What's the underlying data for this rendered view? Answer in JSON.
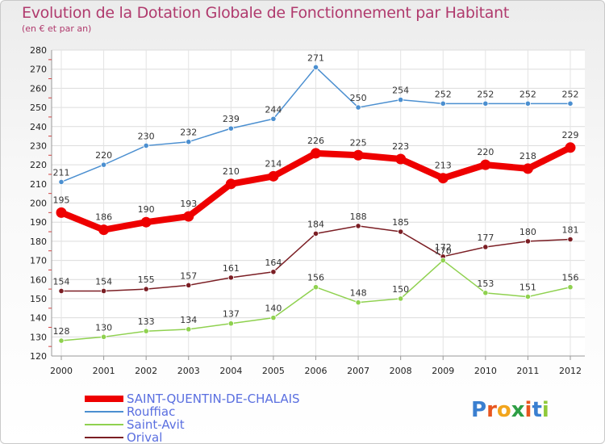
{
  "header": {
    "title": "Evolution de la Dotation Globale de Fonctionnement par Habitant",
    "subtitle": "(en € et par an)"
  },
  "logo": {
    "text": "Proxiti"
  },
  "chart_data": {
    "type": "line",
    "x": [
      2000,
      2001,
      2002,
      2003,
      2004,
      2005,
      2006,
      2007,
      2008,
      2009,
      2010,
      2011,
      2012
    ],
    "ylim": [
      120,
      280
    ],
    "yticks": [
      120,
      130,
      140,
      150,
      160,
      170,
      180,
      190,
      200,
      210,
      220,
      230,
      240,
      250,
      260,
      270,
      280
    ],
    "grid": true,
    "legend": "bottom-left",
    "series": [
      {
        "name": "SAINT-QUENTIN-DE-CHALAIS",
        "color": "#ee0000",
        "values": [
          195,
          186,
          190,
          193,
          210,
          214,
          226,
          225,
          223,
          213,
          220,
          218,
          229
        ]
      },
      {
        "name": "Rouffiac",
        "color": "#4b8fd0",
        "values": [
          211,
          220,
          230,
          232,
          239,
          244,
          271,
          250,
          254,
          252,
          252,
          252,
          252
        ]
      },
      {
        "name": "Saint-Avit",
        "color": "#8fd14f",
        "values": [
          128,
          130,
          133,
          134,
          137,
          140,
          156,
          148,
          150,
          170,
          153,
          151,
          156
        ]
      },
      {
        "name": "Orival",
        "color": "#7b1e24",
        "values": [
          154,
          154,
          155,
          157,
          161,
          164,
          184,
          188,
          185,
          172,
          177,
          180,
          181
        ]
      }
    ]
  }
}
